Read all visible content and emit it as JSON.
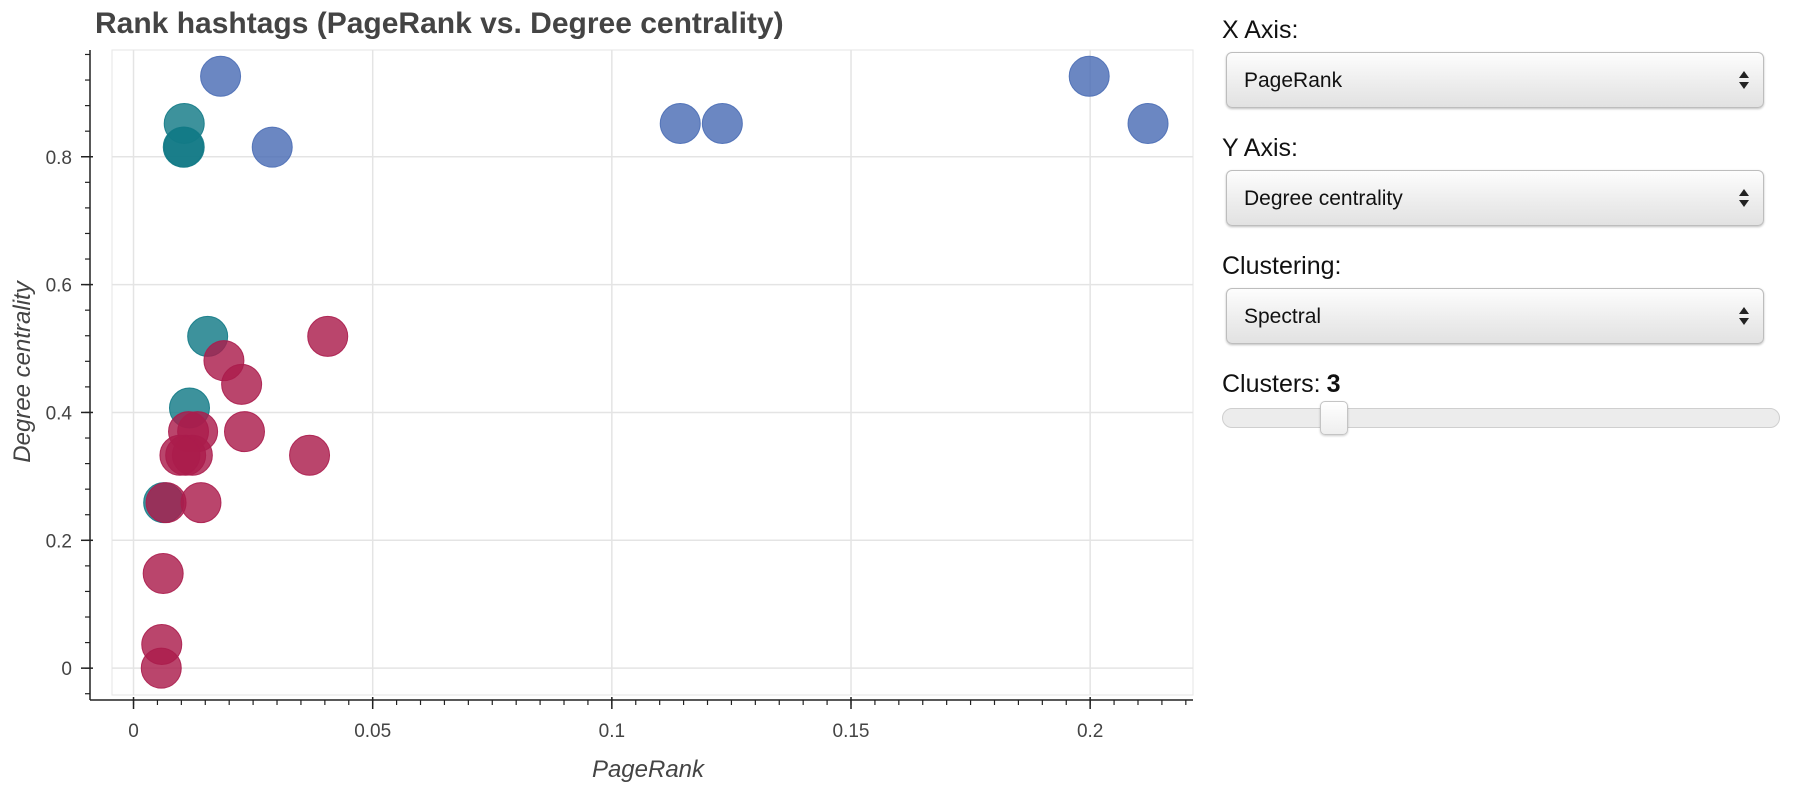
{
  "chart_data": {
    "type": "scatter",
    "title": "Rank hashtags (PageRank vs. Degree centrality)",
    "xlabel": "PageRank",
    "ylabel": "Degree centrality",
    "xlim": [
      -0.0045,
      0.2215
    ],
    "ylim": [
      -0.042,
      0.967
    ],
    "xticks": [
      0,
      0.05,
      0.1,
      0.15,
      0.2
    ],
    "xtick_labels": [
      "0",
      "0.05",
      "0.1",
      "0.15",
      "0.2"
    ],
    "yticks": [
      0,
      0.2,
      0.4,
      0.6,
      0.8
    ],
    "ytick_labels": [
      "0",
      "0.2",
      "0.4",
      "0.6",
      "0.8"
    ],
    "grid": true,
    "legend": false,
    "series": [
      {
        "color": "#4a6db5",
        "values": [
          {
            "x": 0.0182,
            "y": 0.926
          },
          {
            "x": 0.029,
            "y": 0.815
          },
          {
            "x": 0.1143,
            "y": 0.852
          },
          {
            "x": 0.1231,
            "y": 0.852
          },
          {
            "x": 0.1998,
            "y": 0.926
          },
          {
            "x": 0.2121,
            "y": 0.852
          }
        ]
      },
      {
        "color": "#127a86",
        "values": [
          {
            "x": 0.0106,
            "y": 0.852
          },
          {
            "x": 0.0104,
            "y": 0.815
          },
          {
            "x": 0.0106,
            "y": 0.815
          },
          {
            "x": 0.0155,
            "y": 0.519
          },
          {
            "x": 0.0117,
            "y": 0.407
          },
          {
            "x": 0.0063,
            "y": 0.259
          }
        ]
      },
      {
        "color": "#ab1c4c",
        "values": [
          {
            "x": 0.0406,
            "y": 0.519
          },
          {
            "x": 0.0189,
            "y": 0.481
          },
          {
            "x": 0.0226,
            "y": 0.444
          },
          {
            "x": 0.0232,
            "y": 0.37
          },
          {
            "x": 0.0134,
            "y": 0.37
          },
          {
            "x": 0.0115,
            "y": 0.37
          },
          {
            "x": 0.0109,
            "y": 0.333
          },
          {
            "x": 0.0123,
            "y": 0.333
          },
          {
            "x": 0.0097,
            "y": 0.333
          },
          {
            "x": 0.0368,
            "y": 0.333
          },
          {
            "x": 0.0141,
            "y": 0.259
          },
          {
            "x": 0.0068,
            "y": 0.259
          },
          {
            "x": 0.0062,
            "y": 0.148
          },
          {
            "x": 0.0059,
            "y": 0.037
          },
          {
            "x": 0.0058,
            "y": 0.0
          }
        ]
      }
    ]
  },
  "controls": {
    "x_axis": {
      "label": "X Axis:",
      "value": "PageRank"
    },
    "y_axis": {
      "label": "Y Axis:",
      "value": "Degree centrality"
    },
    "clustering": {
      "label": "Clustering:",
      "value": "Spectral"
    },
    "clusters": {
      "label": "Clusters:",
      "value": "3",
      "level": 0.2
    }
  }
}
